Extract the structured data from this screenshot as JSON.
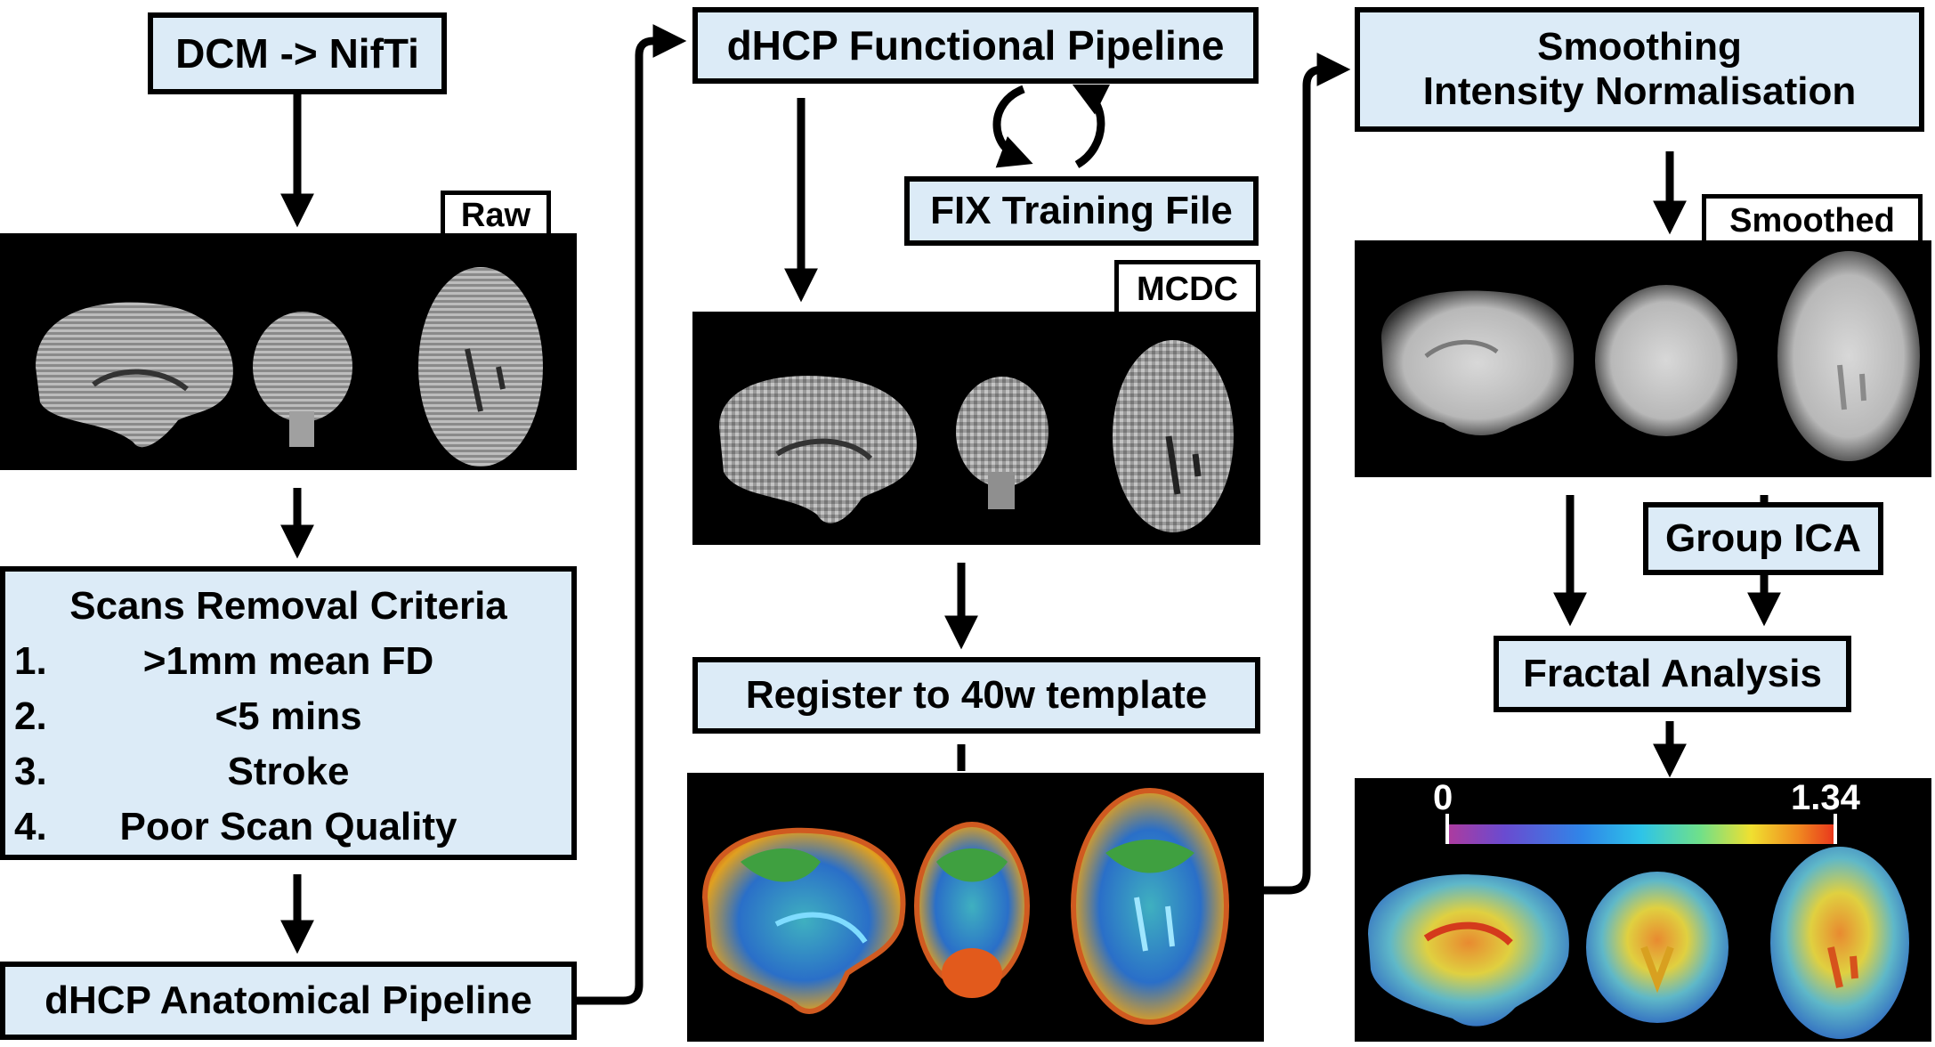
{
  "left": {
    "convert_label": "DCM -> NifTi",
    "raw_label": "Raw",
    "criteria": {
      "title": "Scans Removal Criteria",
      "items": [
        {
          "num": "1.",
          "text": ">1mm mean FD"
        },
        {
          "num": "2.",
          "text": "<5 mins"
        },
        {
          "num": "3.",
          "text": "Stroke"
        },
        {
          "num": "4.",
          "text": "Poor Scan Quality"
        }
      ]
    },
    "anatomical_label": "dHCP Anatomical Pipeline"
  },
  "middle": {
    "functional_label": "dHCP Functional Pipeline",
    "fix_label": "FIX Training File",
    "mcdc_label": "MCDC",
    "register_label": "Register to 40w template"
  },
  "right": {
    "smoothing_line1": "Smoothing",
    "smoothing_line2": "Intensity Normalisation",
    "smoothed_label": "Smoothed",
    "group_ica_label": "Group ICA",
    "fractal_label": "Fractal Analysis",
    "colorbar": {
      "min_label": "0",
      "max_label": "1.34",
      "colors": [
        "#b03a9c",
        "#6a4bd0",
        "#2f86e8",
        "#2ec4e8",
        "#6fe08a",
        "#f0e030",
        "#f08a20",
        "#e8301c"
      ]
    }
  },
  "colors": {
    "box_fill": "#dcebf7",
    "border": "#000000",
    "panel": "#000000"
  }
}
